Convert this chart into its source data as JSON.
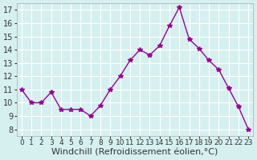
{
  "x": [
    0,
    1,
    2,
    3,
    4,
    5,
    6,
    7,
    8,
    9,
    10,
    11,
    12,
    13,
    14,
    15,
    16,
    17,
    18,
    19,
    20,
    21,
    22,
    23
  ],
  "y": [
    11.0,
    10.0,
    10.0,
    10.8,
    9.5,
    9.5,
    9.5,
    9.0,
    9.8,
    11.0,
    12.0,
    13.2,
    14.0,
    13.6,
    14.3,
    15.8,
    17.2,
    14.8,
    14.1,
    13.2,
    12.5,
    11.1,
    9.7,
    8.0
  ],
  "line_color": "#990099",
  "marker": "*",
  "marker_size": 4,
  "bg_color": "#d6f0f0",
  "grid_color": "#ffffff",
  "xlabel": "Windchill (Refroidissement éolien,°C)",
  "xlabel_fontsize": 8,
  "tick_fontsize": 7,
  "ylim": [
    7.5,
    17.5
  ],
  "yticks": [
    8,
    9,
    10,
    11,
    12,
    13,
    14,
    15,
    16,
    17
  ],
  "xlim": [
    -0.5,
    23.5
  ],
  "tick_color": "#333333"
}
